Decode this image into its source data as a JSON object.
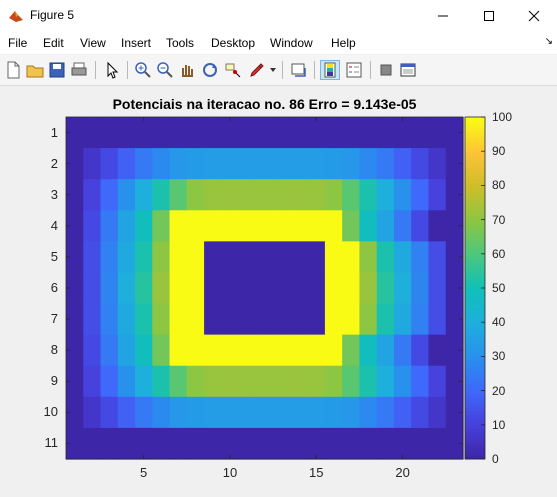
{
  "window": {
    "title": "Figure 5"
  },
  "menu": [
    "File",
    "Edit",
    "View",
    "Insert",
    "Tools",
    "Desktop",
    "Window",
    "Help"
  ],
  "toolbar_icons": [
    "new-figure-icon",
    "open-file-icon",
    "save-icon",
    "print-icon",
    "pointer-icon",
    "zoom-in-icon",
    "zoom-out-icon",
    "pan-icon",
    "rotate-3d-icon",
    "data-cursor-icon",
    "brush-icon",
    "link-plot-icon",
    "insert-colorbar-icon",
    "insert-legend-icon",
    "hide-plot-tools-icon",
    "show-plot-tools-icon"
  ],
  "chart_data": {
    "type": "heatmap",
    "title": "Potenciais na iteracao no. 86   Erro = 9.143e-05",
    "xlim": [
      0.5,
      23.5
    ],
    "ylim": [
      0.5,
      11.5
    ],
    "x_ticks": [
      "5",
      "10",
      "15",
      "20"
    ],
    "y_ticks": [
      "1",
      "2",
      "3",
      "4",
      "5",
      "6",
      "7",
      "8",
      "9",
      "10",
      "11"
    ],
    "colorbar_ticks": [
      "0",
      "10",
      "20",
      "30",
      "40",
      "50",
      "60",
      "70",
      "80",
      "90",
      "100"
    ],
    "clim": [
      0,
      100
    ],
    "colormap": "parula",
    "z": [
      [
        0,
        0,
        0,
        0,
        0,
        0,
        0,
        0,
        0,
        0,
        0,
        0,
        0,
        0,
        0,
        0,
        0,
        0,
        0,
        0,
        0,
        0,
        0
      ],
      [
        0,
        6,
        12,
        18,
        24,
        28,
        32,
        33,
        34,
        34,
        34,
        34,
        34,
        34,
        34,
        33,
        32,
        28,
        24,
        18,
        12,
        6,
        0
      ],
      [
        0,
        10,
        20,
        30,
        40,
        52,
        62,
        70,
        72,
        72,
        72,
        72,
        72,
        72,
        72,
        70,
        62,
        52,
        40,
        30,
        20,
        10,
        0
      ],
      [
        0,
        12,
        24,
        36,
        48,
        66,
        100,
        100,
        100,
        100,
        100,
        100,
        100,
        100,
        100,
        100,
        66,
        48,
        36,
        24,
        12,
        0,
        0
      ],
      [
        0,
        13,
        26,
        38,
        52,
        70,
        100,
        100,
        0,
        0,
        0,
        0,
        0,
        0,
        0,
        100,
        100,
        70,
        52,
        38,
        26,
        13,
        0
      ],
      [
        0,
        13,
        27,
        40,
        54,
        72,
        100,
        100,
        0,
        0,
        0,
        0,
        0,
        0,
        0,
        100,
        100,
        72,
        54,
        40,
        27,
        13,
        0
      ],
      [
        0,
        13,
        26,
        38,
        52,
        70,
        100,
        100,
        0,
        0,
        0,
        0,
        0,
        0,
        0,
        100,
        100,
        70,
        52,
        38,
        26,
        13,
        0
      ],
      [
        0,
        12,
        24,
        36,
        48,
        66,
        100,
        100,
        100,
        100,
        100,
        100,
        100,
        100,
        100,
        100,
        66,
        48,
        36,
        24,
        12,
        0,
        0
      ],
      [
        0,
        10,
        20,
        30,
        40,
        52,
        62,
        70,
        72,
        72,
        72,
        72,
        72,
        72,
        72,
        70,
        62,
        52,
        40,
        30,
        20,
        10,
        0
      ],
      [
        0,
        6,
        12,
        18,
        24,
        28,
        32,
        33,
        34,
        34,
        34,
        34,
        34,
        34,
        34,
        33,
        32,
        28,
        24,
        18,
        12,
        6,
        0
      ],
      [
        0,
        0,
        0,
        0,
        0,
        0,
        0,
        0,
        0,
        0,
        0,
        0,
        0,
        0,
        0,
        0,
        0,
        0,
        0,
        0,
        0,
        0,
        0
      ]
    ]
  }
}
